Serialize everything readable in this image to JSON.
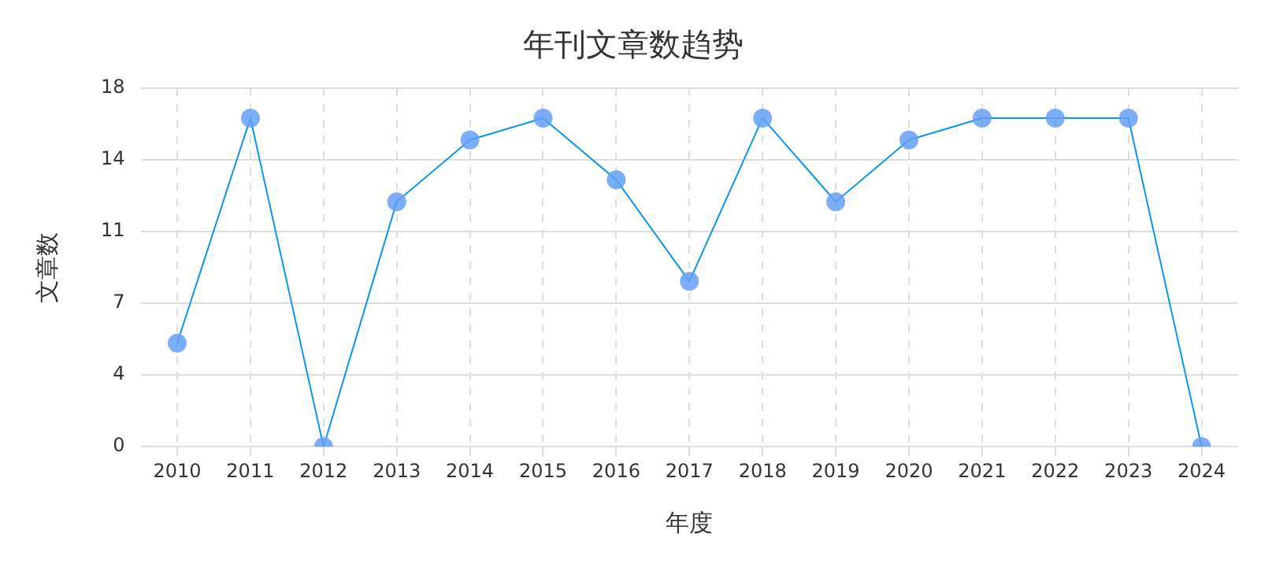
{
  "chart_data": {
    "type": "line",
    "title": "年刊文章数趋势",
    "xlabel": "年度",
    "ylabel": "文章数",
    "categories": [
      "2010",
      "2011",
      "2012",
      "2013",
      "2014",
      "2015",
      "2016",
      "2017",
      "2018",
      "2019",
      "2020",
      "2021",
      "2022",
      "2023",
      "2024"
    ],
    "series": [
      {
        "color": "#0a96f0",
        "values": [
          5.2,
          16.5,
          0,
          12.3,
          15.4,
          16.5,
          13.4,
          8.3,
          16.5,
          12.3,
          15.4,
          16.5,
          16.5,
          16.5,
          0
        ]
      }
    ],
    "ylim": [
      0,
      18
    ],
    "yticks": [
      0,
      {
        "value": 3.6,
        "label": "4"
      },
      {
        "value": 7.2,
        "label": "7"
      },
      {
        "value": 10.8,
        "label": "11"
      },
      {
        "value": 14.4,
        "label": "14"
      },
      18
    ],
    "grid": true,
    "marker": "circle",
    "line_style": "solid",
    "legend": false
  }
}
